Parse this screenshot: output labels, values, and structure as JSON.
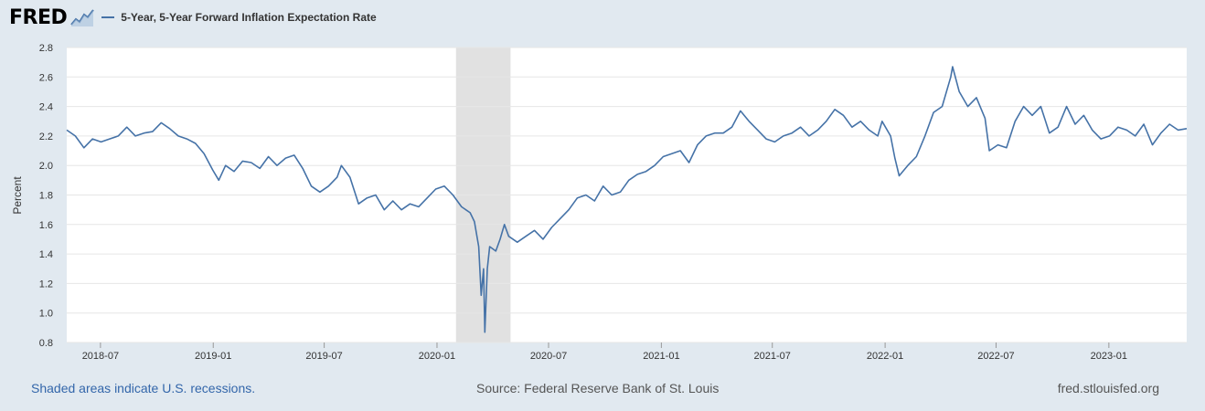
{
  "logo": {
    "text": "FRED",
    "icon": "chart-line-icon"
  },
  "colors": {
    "series": "#4572a7",
    "recession": "#e1e1e1",
    "grid": "#e6e6e6",
    "background": "#e1e9f0"
  },
  "footer": {
    "note": "Shaded areas indicate U.S. recessions.",
    "source": "Source: Federal Reserve Bank of St. Louis",
    "site": "fred.stlouisfed.org"
  },
  "chart_data": {
    "type": "line",
    "title": "",
    "xlabel": "",
    "ylabel": "Percent",
    "ylim": [
      0.8,
      2.8
    ],
    "xlim": [
      "2018-05-07",
      "2023-05-08"
    ],
    "yticks": [
      "0.8",
      "1.0",
      "1.2",
      "1.4",
      "1.6",
      "1.8",
      "2.0",
      "2.2",
      "2.4",
      "2.6",
      "2.8"
    ],
    "xticks": [
      "2018-07",
      "2019-01",
      "2019-07",
      "2020-01",
      "2020-07",
      "2021-01",
      "2021-07",
      "2022-01",
      "2022-07",
      "2023-01"
    ],
    "grid": true,
    "legend_position": "top-left",
    "recessions": [
      {
        "start": "2020-02-01",
        "end": "2020-04-30"
      }
    ],
    "series": [
      {
        "name": "5-Year, 5-Year Forward Inflation Expectation Rate",
        "points": [
          [
            "2018-05-07",
            2.24
          ],
          [
            "2018-05-21",
            2.2
          ],
          [
            "2018-06-04",
            2.12
          ],
          [
            "2018-06-18",
            2.18
          ],
          [
            "2018-07-02",
            2.16
          ],
          [
            "2018-07-16",
            2.18
          ],
          [
            "2018-07-30",
            2.2
          ],
          [
            "2018-08-13",
            2.26
          ],
          [
            "2018-08-27",
            2.2
          ],
          [
            "2018-09-10",
            2.22
          ],
          [
            "2018-09-24",
            2.23
          ],
          [
            "2018-10-08",
            2.29
          ],
          [
            "2018-10-22",
            2.25
          ],
          [
            "2018-11-05",
            2.2
          ],
          [
            "2018-11-19",
            2.18
          ],
          [
            "2018-12-03",
            2.15
          ],
          [
            "2018-12-17",
            2.08
          ],
          [
            "2018-12-31",
            1.97
          ],
          [
            "2019-01-10",
            1.9
          ],
          [
            "2019-01-21",
            2.0
          ],
          [
            "2019-02-04",
            1.96
          ],
          [
            "2019-02-18",
            2.03
          ],
          [
            "2019-03-04",
            2.02
          ],
          [
            "2019-03-18",
            1.98
          ],
          [
            "2019-04-01",
            2.06
          ],
          [
            "2019-04-15",
            2.0
          ],
          [
            "2019-04-29",
            2.05
          ],
          [
            "2019-05-13",
            2.07
          ],
          [
            "2019-05-27",
            1.98
          ],
          [
            "2019-06-10",
            1.86
          ],
          [
            "2019-06-24",
            1.82
          ],
          [
            "2019-07-08",
            1.86
          ],
          [
            "2019-07-22",
            1.92
          ],
          [
            "2019-07-29",
            2.0
          ],
          [
            "2019-08-12",
            1.92
          ],
          [
            "2019-08-26",
            1.74
          ],
          [
            "2019-09-09",
            1.78
          ],
          [
            "2019-09-23",
            1.8
          ],
          [
            "2019-10-07",
            1.7
          ],
          [
            "2019-10-21",
            1.76
          ],
          [
            "2019-11-04",
            1.7
          ],
          [
            "2019-11-18",
            1.74
          ],
          [
            "2019-12-02",
            1.72
          ],
          [
            "2019-12-16",
            1.78
          ],
          [
            "2019-12-30",
            1.84
          ],
          [
            "2020-01-13",
            1.86
          ],
          [
            "2020-01-27",
            1.8
          ],
          [
            "2020-02-10",
            1.72
          ],
          [
            "2020-02-24",
            1.68
          ],
          [
            "2020-03-02",
            1.62
          ],
          [
            "2020-03-09",
            1.45
          ],
          [
            "2020-03-13",
            1.12
          ],
          [
            "2020-03-17",
            1.3
          ],
          [
            "2020-03-19",
            0.87
          ],
          [
            "2020-03-23",
            1.3
          ],
          [
            "2020-03-27",
            1.45
          ],
          [
            "2020-04-06",
            1.42
          ],
          [
            "2020-04-13",
            1.5
          ],
          [
            "2020-04-20",
            1.6
          ],
          [
            "2020-04-27",
            1.52
          ],
          [
            "2020-05-11",
            1.48
          ],
          [
            "2020-05-25",
            1.52
          ],
          [
            "2020-06-08",
            1.56
          ],
          [
            "2020-06-22",
            1.5
          ],
          [
            "2020-07-06",
            1.58
          ],
          [
            "2020-07-20",
            1.64
          ],
          [
            "2020-08-03",
            1.7
          ],
          [
            "2020-08-17",
            1.78
          ],
          [
            "2020-08-31",
            1.8
          ],
          [
            "2020-09-14",
            1.76
          ],
          [
            "2020-09-28",
            1.86
          ],
          [
            "2020-10-12",
            1.8
          ],
          [
            "2020-10-26",
            1.82
          ],
          [
            "2020-11-09",
            1.9
          ],
          [
            "2020-11-23",
            1.94
          ],
          [
            "2020-12-07",
            1.96
          ],
          [
            "2020-12-21",
            2.0
          ],
          [
            "2021-01-04",
            2.06
          ],
          [
            "2021-01-18",
            2.08
          ],
          [
            "2021-02-01",
            2.1
          ],
          [
            "2021-02-15",
            2.02
          ],
          [
            "2021-03-01",
            2.14
          ],
          [
            "2021-03-15",
            2.2
          ],
          [
            "2021-03-29",
            2.22
          ],
          [
            "2021-04-12",
            2.22
          ],
          [
            "2021-04-26",
            2.26
          ],
          [
            "2021-05-10",
            2.37
          ],
          [
            "2021-05-24",
            2.3
          ],
          [
            "2021-06-07",
            2.24
          ],
          [
            "2021-06-21",
            2.18
          ],
          [
            "2021-07-05",
            2.16
          ],
          [
            "2021-07-19",
            2.2
          ],
          [
            "2021-08-02",
            2.22
          ],
          [
            "2021-08-16",
            2.26
          ],
          [
            "2021-08-30",
            2.2
          ],
          [
            "2021-09-13",
            2.24
          ],
          [
            "2021-09-27",
            2.3
          ],
          [
            "2021-10-11",
            2.38
          ],
          [
            "2021-10-25",
            2.34
          ],
          [
            "2021-11-08",
            2.26
          ],
          [
            "2021-11-22",
            2.3
          ],
          [
            "2021-12-06",
            2.24
          ],
          [
            "2021-12-20",
            2.2
          ],
          [
            "2021-12-27",
            2.3
          ],
          [
            "2022-01-10",
            2.2
          ],
          [
            "2022-01-17",
            2.05
          ],
          [
            "2022-01-24",
            1.93
          ],
          [
            "2022-02-07",
            2.0
          ],
          [
            "2022-02-21",
            2.06
          ],
          [
            "2022-03-07",
            2.2
          ],
          [
            "2022-03-21",
            2.36
          ],
          [
            "2022-04-04",
            2.4
          ],
          [
            "2022-04-18",
            2.6
          ],
          [
            "2022-04-21",
            2.67
          ],
          [
            "2022-05-02",
            2.5
          ],
          [
            "2022-05-16",
            2.4
          ],
          [
            "2022-05-30",
            2.46
          ],
          [
            "2022-06-13",
            2.32
          ],
          [
            "2022-06-20",
            2.1
          ],
          [
            "2022-07-04",
            2.14
          ],
          [
            "2022-07-18",
            2.12
          ],
          [
            "2022-08-01",
            2.3
          ],
          [
            "2022-08-15",
            2.4
          ],
          [
            "2022-08-29",
            2.34
          ],
          [
            "2022-09-12",
            2.4
          ],
          [
            "2022-09-26",
            2.22
          ],
          [
            "2022-10-10",
            2.26
          ],
          [
            "2022-10-24",
            2.4
          ],
          [
            "2022-11-07",
            2.28
          ],
          [
            "2022-11-21",
            2.34
          ],
          [
            "2022-12-05",
            2.24
          ],
          [
            "2022-12-19",
            2.18
          ],
          [
            "2023-01-02",
            2.2
          ],
          [
            "2023-01-16",
            2.26
          ],
          [
            "2023-01-30",
            2.24
          ],
          [
            "2023-02-13",
            2.2
          ],
          [
            "2023-02-27",
            2.28
          ],
          [
            "2023-03-13",
            2.14
          ],
          [
            "2023-03-27",
            2.22
          ],
          [
            "2023-04-10",
            2.28
          ],
          [
            "2023-04-24",
            2.24
          ],
          [
            "2023-05-08",
            2.25
          ]
        ]
      }
    ]
  }
}
